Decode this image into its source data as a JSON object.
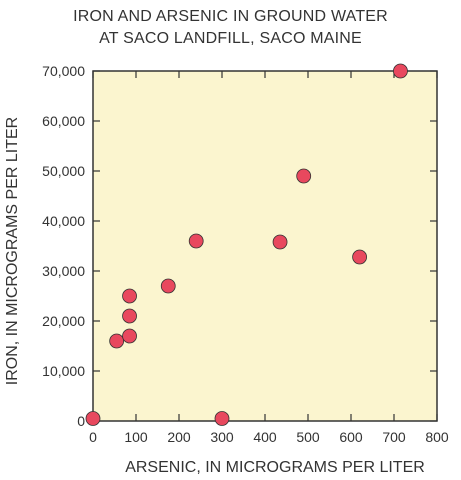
{
  "chart_data": {
    "type": "scatter",
    "title_lines": [
      "IRON AND ARSENIC IN GROUND WATER",
      "AT SACO LANDFILL, SACO MAINE"
    ],
    "xlabel": "ARSENIC, IN MICROGRAMS PER LITER",
    "ylabel": "IRON, IN MICROGRAMS PER LITER",
    "xlim": [
      0,
      800
    ],
    "ylim": [
      0,
      70000
    ],
    "x_ticks": [
      0,
      100,
      200,
      300,
      400,
      500,
      600,
      700,
      800
    ],
    "x_tick_labels": [
      "0",
      "100",
      "200",
      "300",
      "400",
      "500",
      "600",
      "700",
      "800"
    ],
    "y_ticks": [
      0,
      10000,
      20000,
      30000,
      40000,
      50000,
      60000,
      70000
    ],
    "y_tick_labels": [
      "0",
      "10,000",
      "20,000",
      "30,000",
      "40,000",
      "50,000",
      "60,000",
      "70,000"
    ],
    "grid": false,
    "points": [
      {
        "x": 0,
        "y": 500
      },
      {
        "x": 55,
        "y": 16000
      },
      {
        "x": 85,
        "y": 17000
      },
      {
        "x": 85,
        "y": 21000
      },
      {
        "x": 85,
        "y": 25000
      },
      {
        "x": 175,
        "y": 27000
      },
      {
        "x": 240,
        "y": 36000
      },
      {
        "x": 300,
        "y": 500
      },
      {
        "x": 435,
        "y": 35800
      },
      {
        "x": 490,
        "y": 49000
      },
      {
        "x": 620,
        "y": 32800
      },
      {
        "x": 715,
        "y": 70000
      }
    ],
    "colors": {
      "plot_background": "#fbf5cf",
      "marker_fill": "#e8485e",
      "marker_stroke": "#333333",
      "axis": "#333333"
    }
  }
}
